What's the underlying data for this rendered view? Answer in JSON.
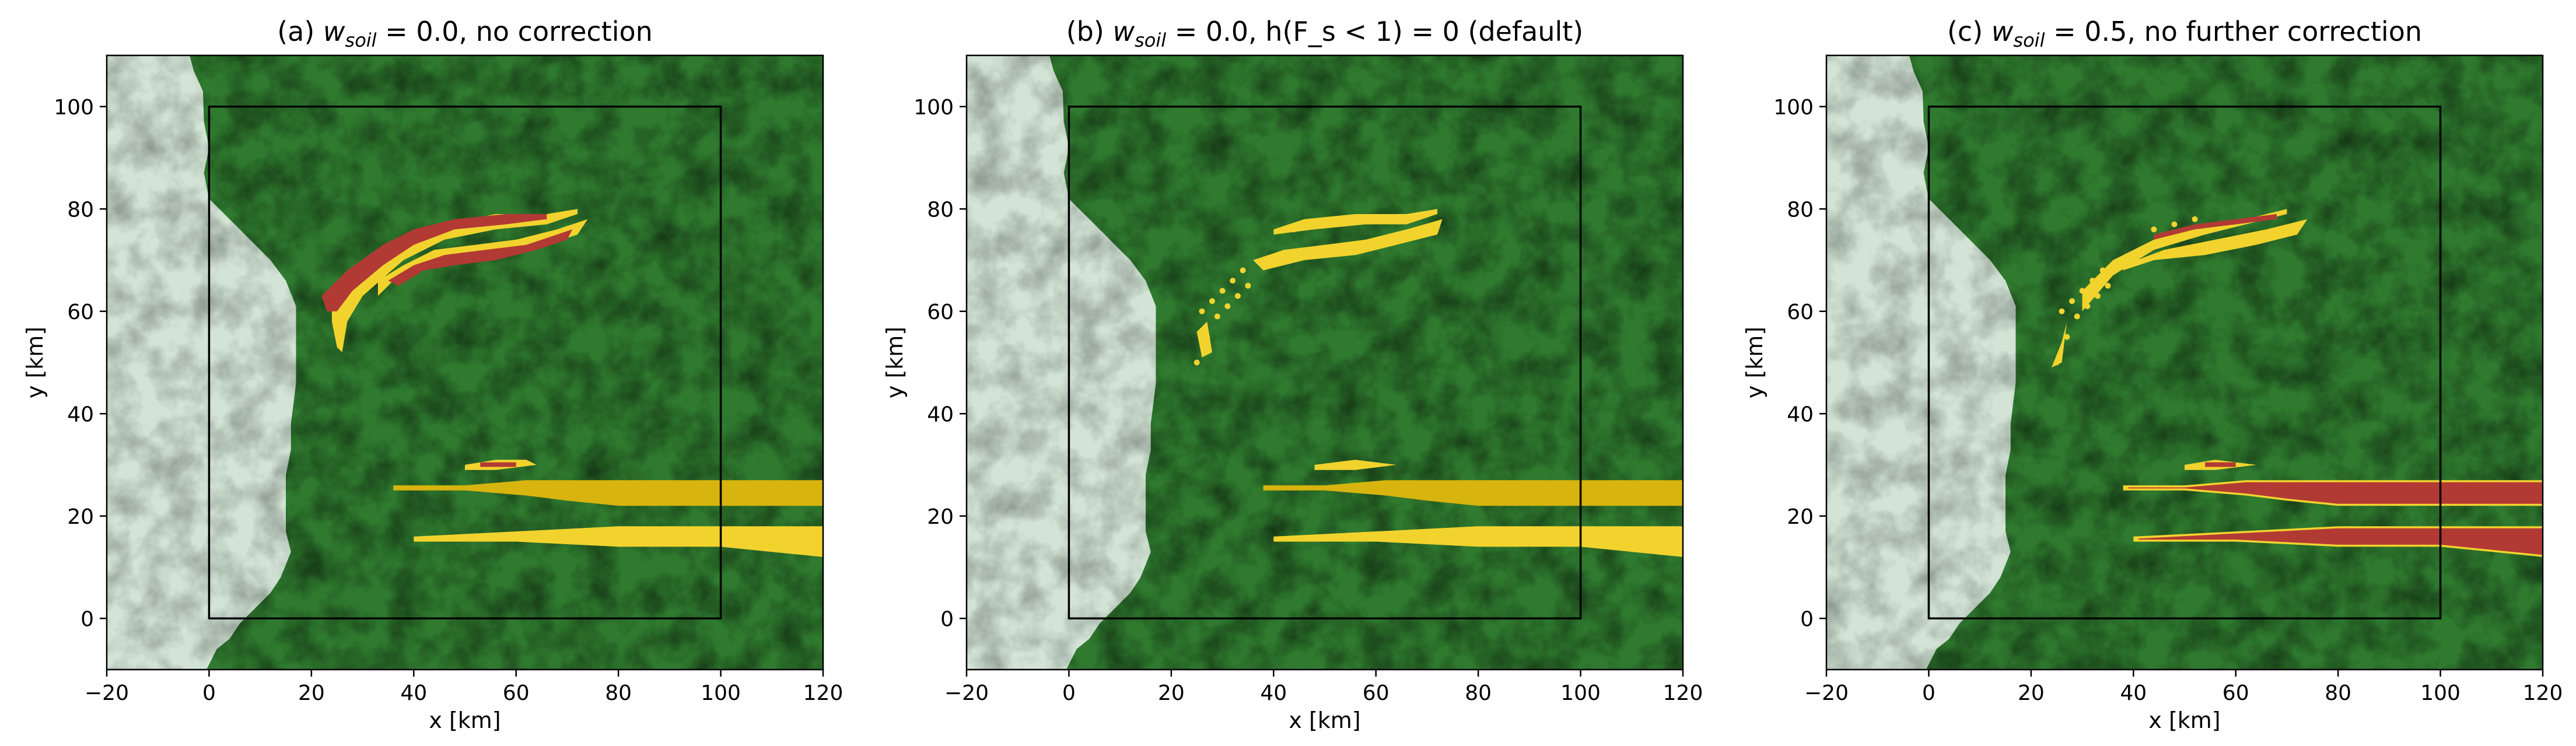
{
  "figure": {
    "palette": {
      "water": "#d3e4d6",
      "stable": "#2f7a2f",
      "stable_shade": "#226622",
      "margin_yellow": "#f2d32e",
      "margin_dark_yellow": "#d7b40e",
      "unstable_red": "#b23a34"
    }
  },
  "chart_data": [
    {
      "type": "heatmap",
      "title_prefix": "(a) ",
      "title_var": "w",
      "title_sub": "soil",
      "title_rest": " = 0.0, no correction",
      "xlabel": "x [km]",
      "ylabel": "y [km]",
      "xlim": [
        -20,
        120
      ],
      "ylim": [
        -10,
        110
      ],
      "xticks": [
        -20,
        0,
        20,
        40,
        60,
        80,
        100,
        120
      ],
      "yticks": [
        0,
        20,
        40,
        60,
        80,
        100
      ],
      "domain_box": [
        0,
        0,
        100,
        100
      ],
      "overlay": "a"
    },
    {
      "type": "heatmap",
      "title_prefix": "(b) ",
      "title_var": "w",
      "title_sub": "soil",
      "title_rest": " = 0.0, h(F_s < 1) = 0 (default)",
      "xlabel": "x [km]",
      "ylabel": "y [km]",
      "xlim": [
        -20,
        120
      ],
      "ylim": [
        -10,
        110
      ],
      "xticks": [
        -20,
        0,
        20,
        40,
        60,
        80,
        100,
        120
      ],
      "yticks": [
        0,
        20,
        40,
        60,
        80,
        100
      ],
      "domain_box": [
        0,
        0,
        100,
        100
      ],
      "overlay": "b"
    },
    {
      "type": "heatmap",
      "title_prefix": "(c) ",
      "title_var": "w",
      "title_sub": "soil",
      "title_rest": " = 0.5, no further correction",
      "xlabel": "x [km]",
      "ylabel": "y [km]",
      "xlim": [
        -20,
        120
      ],
      "ylim": [
        -10,
        110
      ],
      "xticks": [
        -20,
        0,
        20,
        40,
        60,
        80,
        100,
        120
      ],
      "yticks": [
        0,
        20,
        40,
        60,
        80,
        100
      ],
      "domain_box": [
        0,
        0,
        100,
        100
      ],
      "overlay": "c"
    }
  ]
}
